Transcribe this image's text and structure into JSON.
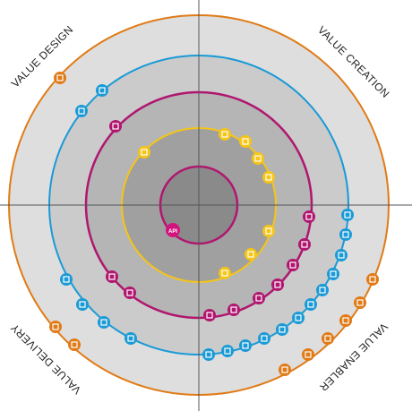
{
  "quadrants": {
    "top_left": "VALUE DESIGN",
    "top_right": "VALUE CREATION",
    "bottom_left": "VALUE DELIVERY",
    "bottom_right": "VALUE ENABLER"
  },
  "center_node": "API"
}
